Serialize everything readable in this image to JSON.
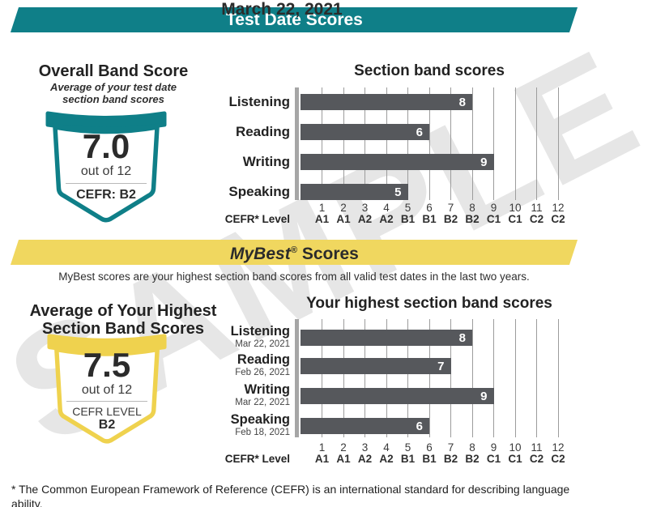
{
  "header": {
    "title": "Test Date Scores"
  },
  "test_date": "March 22, 2021",
  "watermark": "SAMPLE",
  "colors": {
    "teal": "#0f7f88",
    "yellow": "#f0d75f",
    "bar_gray": "#56585c",
    "watermark_gray": "#e6e6e6"
  },
  "overall_badge": {
    "title": "Overall Band Score",
    "subtitle_line1": "Average of your test date",
    "subtitle_line2": "section band scores",
    "score": "7.0",
    "out_of": "out of 12",
    "cefr": "CEFR: B2"
  },
  "mybest": {
    "banner_brand": "MyBest",
    "banner_reg": "®",
    "banner_rest": "Scores",
    "description": "MyBest scores are your highest section band scores from all valid test dates in the last two years.",
    "avg_title_line1": "Average of Your Highest",
    "avg_title_line2": "Section Band Scores",
    "score": "7.5",
    "out_of": "out of 12",
    "cefr_label": "CEFR LEVEL",
    "cefr_value": "B2"
  },
  "footnote": "* The Common European Framework of Reference (CEFR) is an international standard for describing language ability.",
  "chart_data": [
    {
      "type": "bar",
      "orientation": "horizontal",
      "title": "Section band scores",
      "categories": [
        "Listening",
        "Reading",
        "Writing",
        "Speaking"
      ],
      "values": [
        8,
        6,
        9,
        5
      ],
      "xlim": [
        0,
        12
      ],
      "x_ticks": [
        1,
        2,
        3,
        4,
        5,
        6,
        7,
        8,
        9,
        10,
        11,
        12
      ],
      "x_tick_cefr": [
        "A1",
        "A1",
        "A2",
        "A2",
        "B1",
        "B1",
        "B2",
        "B2",
        "C1",
        "C1",
        "C2",
        "C2"
      ],
      "x_axis_label": "CEFR* Level",
      "grid": true,
      "value_labels": "inside-end",
      "bar_color": "#56585c"
    },
    {
      "type": "bar",
      "orientation": "horizontal",
      "title": "Your highest section band scores",
      "categories": [
        "Listening",
        "Reading",
        "Writing",
        "Speaking"
      ],
      "category_dates": [
        "Mar 22, 2021",
        "Feb 26, 2021",
        "Mar 22, 2021",
        "Feb 18, 2021"
      ],
      "values": [
        8,
        7,
        9,
        6
      ],
      "xlim": [
        0,
        12
      ],
      "x_ticks": [
        1,
        2,
        3,
        4,
        5,
        6,
        7,
        8,
        9,
        10,
        11,
        12
      ],
      "x_tick_cefr": [
        "A1",
        "A1",
        "A2",
        "A2",
        "B1",
        "B1",
        "B2",
        "B2",
        "C1",
        "C1",
        "C2",
        "C2"
      ],
      "x_axis_label": "CEFR* Level",
      "grid": true,
      "value_labels": "inside-end",
      "bar_color": "#56585c"
    }
  ]
}
